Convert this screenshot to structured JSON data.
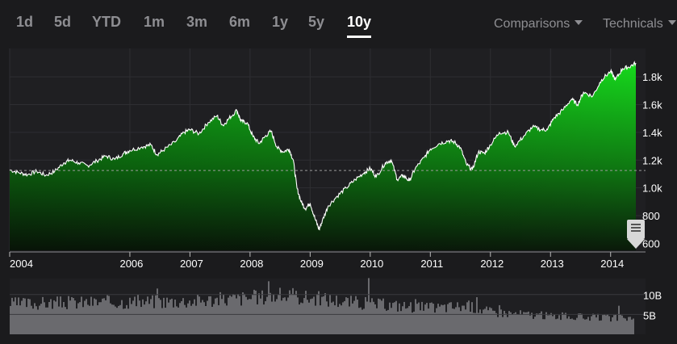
{
  "range_tabs": [
    "1d",
    "5d",
    "YTD",
    "1m",
    "3m",
    "6m",
    "1y",
    "5y",
    "10y"
  ],
  "active_range": "10y",
  "menus": {
    "comparisons": "Comparisons",
    "technicals": "Technicals"
  },
  "colors": {
    "background": "#1b1b1d",
    "plot_background": "#1f1f22",
    "area_top": "#16d91c",
    "area_bottom": "#0a1a0a",
    "line": "#ffffff",
    "volume": "#6a6a6e",
    "tab_inactive": "#8e8e92",
    "tab_active": "#ffffff"
  },
  "chart_data": {
    "type": "area",
    "x_tick_labels": [
      "2004",
      "2006",
      "2007",
      "2008",
      "2009",
      "2010",
      "2011",
      "2012",
      "2013",
      "2014"
    ],
    "x_tick_years": [
      2004.0,
      2006.0,
      2007.0,
      2008.0,
      2009.0,
      2010.0,
      2011.0,
      2012.0,
      2013.0,
      2014.0
    ],
    "x_range": [
      2004.0,
      2014.42
    ],
    "y_tick_labels": [
      "600",
      "800",
      "1.0k",
      "1.2k",
      "1.4k",
      "1.6k",
      "1.8k"
    ],
    "y_tick_values": [
      600,
      800,
      1000,
      1200,
      1400,
      1600,
      1800
    ],
    "y_range": [
      550,
      1900
    ],
    "reference_value": 1125,
    "series": [
      {
        "points": [
          [
            2004.0,
            1130
          ],
          [
            2004.15,
            1110
          ],
          [
            2004.3,
            1095
          ],
          [
            2004.45,
            1120
          ],
          [
            2004.6,
            1090
          ],
          [
            2004.75,
            1120
          ],
          [
            2004.9,
            1180
          ],
          [
            2005.0,
            1200
          ],
          [
            2005.15,
            1180
          ],
          [
            2005.3,
            1160
          ],
          [
            2005.45,
            1195
          ],
          [
            2005.6,
            1230
          ],
          [
            2005.75,
            1205
          ],
          [
            2005.9,
            1250
          ],
          [
            2006.0,
            1270
          ],
          [
            2006.2,
            1295
          ],
          [
            2006.35,
            1310
          ],
          [
            2006.45,
            1240
          ],
          [
            2006.55,
            1270
          ],
          [
            2006.75,
            1330
          ],
          [
            2006.9,
            1400
          ],
          [
            2007.0,
            1420
          ],
          [
            2007.15,
            1390
          ],
          [
            2007.3,
            1470
          ],
          [
            2007.45,
            1520
          ],
          [
            2007.55,
            1450
          ],
          [
            2007.65,
            1500
          ],
          [
            2007.78,
            1560
          ],
          [
            2007.85,
            1480
          ],
          [
            2007.95,
            1470
          ],
          [
            2008.05,
            1370
          ],
          [
            2008.15,
            1320
          ],
          [
            2008.25,
            1370
          ],
          [
            2008.35,
            1410
          ],
          [
            2008.45,
            1290
          ],
          [
            2008.55,
            1260
          ],
          [
            2008.65,
            1280
          ],
          [
            2008.72,
            1200
          ],
          [
            2008.78,
            1000
          ],
          [
            2008.85,
            900
          ],
          [
            2008.92,
            850
          ],
          [
            2009.0,
            890
          ],
          [
            2009.08,
            780
          ],
          [
            2009.15,
            700
          ],
          [
            2009.2,
            760
          ],
          [
            2009.3,
            870
          ],
          [
            2009.45,
            940
          ],
          [
            2009.6,
            1000
          ],
          [
            2009.75,
            1060
          ],
          [
            2009.9,
            1110
          ],
          [
            2010.0,
            1140
          ],
          [
            2010.1,
            1080
          ],
          [
            2010.25,
            1180
          ],
          [
            2010.35,
            1200
          ],
          [
            2010.45,
            1060
          ],
          [
            2010.55,
            1090
          ],
          [
            2010.65,
            1050
          ],
          [
            2010.75,
            1140
          ],
          [
            2010.9,
            1220
          ],
          [
            2011.0,
            1280
          ],
          [
            2011.15,
            1320
          ],
          [
            2011.3,
            1340
          ],
          [
            2011.4,
            1330
          ],
          [
            2011.5,
            1290
          ],
          [
            2011.6,
            1170
          ],
          [
            2011.7,
            1130
          ],
          [
            2011.8,
            1260
          ],
          [
            2011.9,
            1250
          ],
          [
            2012.0,
            1310
          ],
          [
            2012.15,
            1400
          ],
          [
            2012.3,
            1400
          ],
          [
            2012.4,
            1300
          ],
          [
            2012.55,
            1370
          ],
          [
            2012.7,
            1440
          ],
          [
            2012.85,
            1420
          ],
          [
            2012.95,
            1420
          ],
          [
            2013.05,
            1500
          ],
          [
            2013.2,
            1560
          ],
          [
            2013.35,
            1640
          ],
          [
            2013.45,
            1600
          ],
          [
            2013.55,
            1690
          ],
          [
            2013.7,
            1660
          ],
          [
            2013.85,
            1780
          ],
          [
            2014.0,
            1840
          ],
          [
            2014.08,
            1780
          ],
          [
            2014.2,
            1860
          ],
          [
            2014.3,
            1870
          ],
          [
            2014.42,
            1900
          ]
        ]
      }
    ],
    "volume": {
      "tick_labels": [
        "10B",
        "5B"
      ],
      "tick_values": [
        10,
        5
      ],
      "y_range": [
        0,
        14
      ],
      "x": [
        2004.0,
        2005.0,
        2006.0,
        2007.0,
        2008.0,
        2008.5,
        2009.0,
        2009.5,
        2010.0,
        2011.0,
        2011.6,
        2012.0,
        2013.0,
        2014.0,
        2014.42
      ],
      "values": [
        7.5,
        7.8,
        8.0,
        8.2,
        9.0,
        9.5,
        9.0,
        8.2,
        7.5,
        6.5,
        7.0,
        5.5,
        4.5,
        4.0,
        4.0
      ]
    }
  }
}
